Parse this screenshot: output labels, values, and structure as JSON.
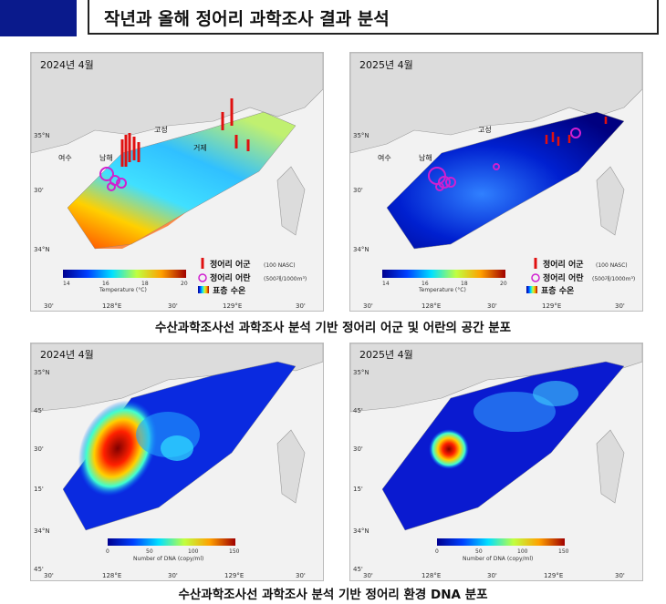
{
  "header": {
    "title": "작년과 올해 정어리 과학조사 결과 분석"
  },
  "top": {
    "caption": "수산과학조사선 과학조사 분석 기반 정어리 어군 및 어란의 공간 분포",
    "panels": [
      {
        "date": "2024년 4월",
        "places": [
          "고성",
          "거제",
          "여수",
          "남해"
        ]
      },
      {
        "date": "2025년 4월",
        "places": [
          "고성",
          "여수",
          "남해"
        ]
      }
    ],
    "legend": {
      "school": "정어리 어군",
      "school_unit": "(100 NASC)",
      "egg": "정어리 어란",
      "egg_unit": "(500개/1000m³)",
      "sst": "표층 수온"
    },
    "colorbar": {
      "title": "Temperature (°C)",
      "ticks": [
        "14",
        "16",
        "18",
        "20"
      ]
    },
    "axes": {
      "lat": [
        "35°N",
        "30'",
        "34°N"
      ],
      "lon": [
        "30'",
        "128°E",
        "30'",
        "129°E",
        "30'"
      ]
    }
  },
  "bottom": {
    "caption": "수산과학조사선 과학조사 분석 기반 정어리 환경 DNA 분포",
    "panels": [
      {
        "date": "2024년 4월"
      },
      {
        "date": "2025년 4월"
      }
    ],
    "colorbar": {
      "title": "Number of DNA (copy/ml)",
      "ticks": [
        "0",
        "50",
        "100",
        "150"
      ]
    },
    "axes": {
      "lat": [
        "35°N",
        "45'",
        "30'",
        "15'",
        "34°N",
        "45'"
      ],
      "lon": [
        "30'",
        "128°E",
        "30'",
        "129°E",
        "30'"
      ]
    }
  },
  "colors": {
    "accent": "#0a1a8c",
    "school": "#e01010",
    "egg": "#d020d0"
  }
}
